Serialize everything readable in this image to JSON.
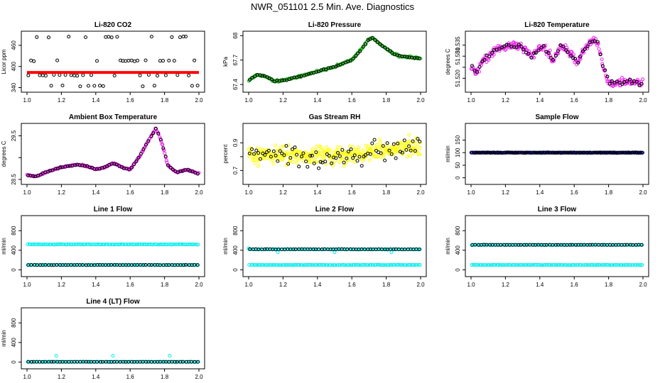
{
  "title": "NWR_051101  2.5 Min. Ave. Diagnostics",
  "colors": {
    "black": "#000000",
    "red": "#ff0000",
    "green": "#22bb22",
    "magenta": "#ee22ee",
    "yellow": "#ffff00",
    "cyan": "#00eeee",
    "blue": "#1a1aaa"
  },
  "chart_data": [
    {
      "id": "co2",
      "type": "scatter",
      "title": "Li-820 CO2",
      "ylabel": "Licor ppm",
      "xlim": [
        1.0,
        2.0
      ],
      "ylim": [
        335,
        492
      ],
      "yticks": [
        340,
        400,
        460
      ],
      "xticks": [
        1.0,
        1.2,
        1.4,
        1.6,
        1.8,
        2.0
      ],
      "series": [
        {
          "name": "raw",
          "color": "black",
          "kind": "levels",
          "levels": [
            345,
            375,
            416,
            484
          ],
          "count": 60,
          "seed": 11
        },
        {
          "name": "average",
          "color": "red",
          "kind": "band",
          "center": 383,
          "half": 4
        }
      ]
    },
    {
      "id": "pressure",
      "type": "scatter",
      "title": "Li-820 Pressure",
      "ylabel": "kPa",
      "xlim": [
        1.0,
        2.0
      ],
      "ylim": [
        67.34,
        68.02
      ],
      "yticks": [
        67.4,
        67.7,
        68.0
      ],
      "xticks": [
        1.0,
        1.2,
        1.4,
        1.6,
        1.8,
        2.0
      ],
      "curve": [
        [
          1.0,
          67.45
        ],
        [
          1.05,
          67.52
        ],
        [
          1.1,
          67.5
        ],
        [
          1.15,
          67.44
        ],
        [
          1.2,
          67.45
        ],
        [
          1.3,
          67.5
        ],
        [
          1.4,
          67.56
        ],
        [
          1.5,
          67.62
        ],
        [
          1.6,
          67.7
        ],
        [
          1.65,
          67.82
        ],
        [
          1.7,
          67.96
        ],
        [
          1.72,
          67.97
        ],
        [
          1.75,
          67.92
        ],
        [
          1.8,
          67.84
        ],
        [
          1.85,
          67.77
        ],
        [
          1.9,
          67.74
        ],
        [
          2.0,
          67.72
        ]
      ],
      "series": [
        {
          "name": "raw",
          "color": "green",
          "count": 230,
          "noise": 0.012,
          "seed": 21
        },
        {
          "name": "average",
          "color": "black",
          "count": 70,
          "noise": 0.006,
          "seed": 22
        }
      ]
    },
    {
      "id": "temperature",
      "type": "scatter",
      "title": "Li-820 Temperature",
      "ylabel": "degrees C",
      "xlim": [
        1.0,
        2.0
      ],
      "ylim": [
        51.515,
        51.54
      ],
      "yticks": [
        51.52,
        51.525,
        51.53,
        51.535
      ],
      "yticklabels": [
        "51.520",
        "",
        "51.530",
        "51.535"
      ],
      "xticks": [
        1.0,
        1.2,
        1.4,
        1.6,
        1.8,
        2.0
      ],
      "curve": [
        [
          1.0,
          51.526
        ],
        [
          1.03,
          51.522
        ],
        [
          1.08,
          51.529
        ],
        [
          1.15,
          51.533
        ],
        [
          1.22,
          51.535
        ],
        [
          1.3,
          51.534
        ],
        [
          1.35,
          51.53
        ],
        [
          1.42,
          51.535
        ],
        [
          1.48,
          51.528
        ],
        [
          1.52,
          51.535
        ],
        [
          1.58,
          51.531
        ],
        [
          1.62,
          51.527
        ],
        [
          1.66,
          51.533
        ],
        [
          1.7,
          51.537
        ],
        [
          1.74,
          51.536
        ],
        [
          1.77,
          51.525
        ],
        [
          1.8,
          51.518
        ],
        [
          1.83,
          51.518
        ],
        [
          2.0,
          51.518
        ]
      ],
      "series": [
        {
          "name": "raw",
          "color": "magenta",
          "count": 260,
          "noise": 0.0018,
          "seed": 31
        },
        {
          "name": "average",
          "color": "black",
          "count": 70,
          "noise": 0.0012,
          "seed": 32
        }
      ]
    },
    {
      "id": "ambient",
      "type": "scatter",
      "title": "Ambient Box Temperature",
      "ylabel": "degrees C",
      "xlim": [
        1.0,
        2.0
      ],
      "ylim": [
        28.45,
        29.72
      ],
      "yticks": [
        28.5,
        29.0,
        29.5
      ],
      "yticklabels": [
        "28.5",
        "",
        "29.5"
      ],
      "xticks": [
        1.0,
        1.2,
        1.4,
        1.6,
        1.8,
        2.0
      ],
      "curve": [
        [
          1.0,
          28.6
        ],
        [
          1.05,
          28.56
        ],
        [
          1.1,
          28.65
        ],
        [
          1.15,
          28.72
        ],
        [
          1.2,
          28.78
        ],
        [
          1.25,
          28.81
        ],
        [
          1.3,
          28.84
        ],
        [
          1.35,
          28.8
        ],
        [
          1.4,
          28.73
        ],
        [
          1.45,
          28.77
        ],
        [
          1.5,
          28.88
        ],
        [
          1.55,
          28.78
        ],
        [
          1.6,
          28.72
        ],
        [
          1.65,
          29.0
        ],
        [
          1.7,
          29.34
        ],
        [
          1.75,
          29.67
        ],
        [
          1.78,
          29.4
        ],
        [
          1.82,
          28.82
        ],
        [
          1.87,
          28.66
        ],
        [
          1.93,
          28.72
        ],
        [
          2.0,
          28.63
        ]
      ],
      "series": [
        {
          "name": "raw",
          "color": "magenta",
          "count": 230,
          "noise": 0.015,
          "seed": 41
        },
        {
          "name": "average",
          "color": "black",
          "count": 70,
          "noise": 0.01,
          "seed": 42
        }
      ]
    },
    {
      "id": "rh",
      "type": "scatter",
      "title": "Gas Stream RH",
      "ylabel": "percent",
      "xlim": [
        1.0,
        2.0
      ],
      "ylim": [
        0.62,
        1.02
      ],
      "yticks": [
        0.7,
        0.8,
        0.9
      ],
      "yticklabels": [
        "0.7",
        "",
        "0.9"
      ],
      "xticks": [
        1.0,
        1.2,
        1.4,
        1.6,
        1.8,
        2.0
      ],
      "curve": [
        [
          1.0,
          0.82
        ],
        [
          1.5,
          0.8
        ],
        [
          2.0,
          0.88
        ]
      ],
      "series": [
        {
          "name": "raw",
          "color": "yellow",
          "count": 330,
          "noise": 0.065,
          "seed": 51
        },
        {
          "name": "average",
          "color": "black",
          "count": 80,
          "noise": 0.07,
          "seed": 52
        }
      ]
    },
    {
      "id": "sample",
      "type": "scatter",
      "title": "Sample Flow",
      "ylabel": "ml/min",
      "xlim": [
        1.0,
        2.0
      ],
      "ylim": [
        -15,
        205
      ],
      "yticks": [
        0,
        50,
        100,
        150
      ],
      "xticks": [
        1.0,
        1.2,
        1.4,
        1.6,
        1.8,
        2.0
      ],
      "series": [
        {
          "name": "raw",
          "color": "blue",
          "kind": "flat",
          "value": 100,
          "noise": 1.2,
          "count": 300,
          "seed": 61
        },
        {
          "name": "average",
          "color": "black",
          "kind": "flat",
          "value": 100,
          "noise": 0.6,
          "count": 90,
          "seed": 62
        }
      ]
    },
    {
      "id": "line1",
      "type": "scatter",
      "title": "Line 1 Flow",
      "ylabel": "ml/min",
      "xlim": [
        1.0,
        2.0
      ],
      "ylim": [
        -80,
        1050
      ],
      "yticks": [
        0,
        400,
        800
      ],
      "yticklabels": [
        "0",
        "400",
        "800"
      ],
      "xticks": [
        1.0,
        1.2,
        1.4,
        1.6,
        1.8,
        2.0
      ],
      "series": [
        {
          "name": "raw-high",
          "color": "cyan",
          "kind": "flat",
          "value": 520,
          "noise": 6,
          "count": 110,
          "seed": 71
        },
        {
          "name": "raw-low",
          "color": "cyan",
          "kind": "flat",
          "value": 100,
          "noise": 3,
          "count": 110,
          "seed": 72
        },
        {
          "name": "average",
          "color": "black",
          "kind": "flat",
          "value": 100,
          "noise": 2,
          "count": 60,
          "seed": 73
        }
      ]
    },
    {
      "id": "line2",
      "type": "scatter",
      "title": "Line 2 Flow",
      "ylabel": "ml/min",
      "xlim": [
        1.0,
        2.0
      ],
      "ylim": [
        -80,
        1050
      ],
      "yticks": [
        0,
        400,
        800
      ],
      "yticklabels": [
        "0",
        "400",
        "800"
      ],
      "xticks": [
        1.0,
        1.2,
        1.4,
        1.6,
        1.8,
        2.0
      ],
      "series": [
        {
          "name": "raw-high",
          "color": "cyan",
          "kind": "flat",
          "value": 420,
          "noise": 5,
          "count": 110,
          "seed": 81,
          "outliers": [
            [
              1.0,
              440
            ],
            [
              1.17,
              360
            ],
            [
              1.5,
              360
            ],
            [
              1.83,
              360
            ]
          ]
        },
        {
          "name": "raw-low",
          "color": "cyan",
          "kind": "flat",
          "value": 100,
          "noise": 3,
          "count": 110,
          "seed": 82
        },
        {
          "name": "average",
          "color": "black",
          "kind": "flat",
          "value": 420,
          "noise": 3,
          "count": 60,
          "seed": 83
        }
      ]
    },
    {
      "id": "line3",
      "type": "scatter",
      "title": "Line 3 Flow",
      "ylabel": "ml/min",
      "xlim": [
        1.0,
        2.0
      ],
      "ylim": [
        -80,
        1050
      ],
      "yticks": [
        0,
        400,
        800
      ],
      "yticklabels": [
        "0",
        "400",
        "800"
      ],
      "xticks": [
        1.0,
        1.2,
        1.4,
        1.6,
        1.8,
        2.0
      ],
      "series": [
        {
          "name": "raw-high",
          "color": "cyan",
          "kind": "flat",
          "value": 510,
          "noise": 5,
          "count": 110,
          "seed": 91
        },
        {
          "name": "raw-low",
          "color": "cyan",
          "kind": "flat",
          "value": 100,
          "noise": 3,
          "count": 110,
          "seed": 92
        },
        {
          "name": "average",
          "color": "black",
          "kind": "flat",
          "value": 510,
          "noise": 3,
          "count": 60,
          "seed": 93
        }
      ]
    },
    {
      "id": "line4",
      "type": "scatter",
      "title": "Line 4 (LT) Flow",
      "ylabel": "ml/min",
      "xlim": [
        1.0,
        2.0
      ],
      "ylim": [
        -80,
        1050
      ],
      "yticks": [
        0,
        400,
        800
      ],
      "yticklabels": [
        "0",
        "400",
        "800"
      ],
      "xticks": [
        1.0,
        1.2,
        1.4,
        1.6,
        1.8,
        2.0
      ],
      "series": [
        {
          "name": "raw",
          "color": "cyan",
          "kind": "flat",
          "value": 5,
          "noise": 2,
          "count": 110,
          "seed": 101,
          "outliers": [
            [
              1.17,
              130
            ],
            [
              1.5,
              130
            ],
            [
              1.83,
              130
            ]
          ]
        },
        {
          "name": "average",
          "color": "black",
          "kind": "flat",
          "value": 5,
          "noise": 1,
          "count": 60,
          "seed": 102
        }
      ]
    }
  ]
}
